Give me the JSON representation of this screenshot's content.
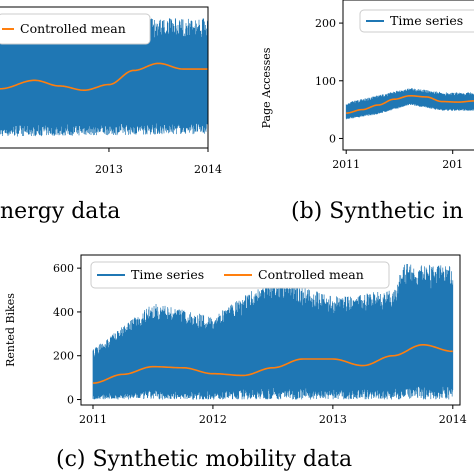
{
  "colors": {
    "series": "#1f77b4",
    "mean": "#ff7f0e"
  },
  "chart_data": [
    {
      "type": "line",
      "caption": "nergy data",
      "xlabel": "",
      "ylabel": "",
      "x_ticks": [
        "2013",
        "2014"
      ],
      "xlim": [
        2011.9,
        2014.0
      ],
      "ylim": [
        0,
        1
      ],
      "legend": {
        "position": "top",
        "entries": [
          "Controlled mean"
        ]
      },
      "series": [
        {
          "name": "",
          "style": "noisy-band",
          "x": [
            2011.9,
            2014.0
          ],
          "low": [
            0.08,
            0.1
          ],
          "high": [
            0.92,
            0.92
          ]
        },
        {
          "name": "Controlled mean",
          "x": [
            2011.9,
            2012.25,
            2012.5,
            2012.75,
            2013.0,
            2013.25,
            2013.5,
            2013.75,
            2014.0
          ],
          "values": [
            0.42,
            0.48,
            0.44,
            0.41,
            0.45,
            0.55,
            0.6,
            0.56,
            0.56
          ]
        }
      ]
    },
    {
      "type": "line",
      "caption": "(b) Synthetic in",
      "xlabel": "",
      "ylabel": "Page Accesses",
      "x_ticks": [
        "2011",
        "201"
      ],
      "y_ticks": [
        0,
        100,
        200
      ],
      "xlim": [
        2010.97,
        2012.2
      ],
      "ylim": [
        -20,
        240
      ],
      "legend": {
        "position": "top-right",
        "entries": [
          "Time series"
        ]
      },
      "series": [
        {
          "name": "Time series",
          "style": "noisy-band",
          "x": [
            2011.0,
            2011.3,
            2011.6,
            2011.9,
            2012.2
          ],
          "low": [
            33,
            42,
            58,
            48,
            48
          ],
          "high": [
            62,
            75,
            88,
            80,
            80
          ]
        },
        {
          "name": "",
          "x": [
            2011.0,
            2011.15,
            2011.3,
            2011.45,
            2011.6,
            2011.75,
            2011.9,
            2012.05,
            2012.2
          ],
          "values": [
            44,
            50,
            58,
            68,
            74,
            72,
            64,
            63,
            65
          ]
        }
      ]
    },
    {
      "type": "line",
      "caption": "(c) Synthetic mobility data",
      "xlabel": "",
      "ylabel": "Rented Bikes",
      "x_ticks": [
        "2011",
        "2012",
        "2013",
        "2014"
      ],
      "y_ticks": [
        0,
        200,
        400,
        600
      ],
      "xlim": [
        2010.9,
        2014.06
      ],
      "ylim": [
        -25,
        660
      ],
      "legend": {
        "position": "top",
        "entries": [
          "Time series",
          "Controlled mean"
        ]
      },
      "series": [
        {
          "name": "Time series",
          "style": "noisy-band",
          "x": [
            2011.0,
            2011.5,
            2012.0,
            2012.5,
            2013.0,
            2013.5,
            2013.6,
            2014.0
          ],
          "low": [
            0,
            0,
            0,
            0,
            0,
            0,
            0,
            0
          ],
          "high": [
            230,
            440,
            380,
            560,
            470,
            500,
            620,
            610
          ]
        },
        {
          "name": "Controlled mean",
          "x": [
            2011.0,
            2011.25,
            2011.5,
            2011.75,
            2012.0,
            2012.25,
            2012.5,
            2012.75,
            2013.0,
            2013.25,
            2013.5,
            2013.75,
            2014.0
          ],
          "values": [
            75,
            115,
            150,
            145,
            118,
            110,
            145,
            185,
            185,
            155,
            200,
            250,
            220
          ]
        }
      ]
    }
  ]
}
